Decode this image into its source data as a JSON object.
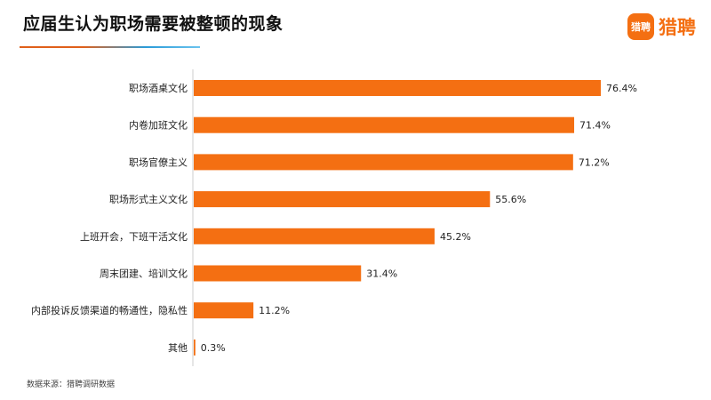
{
  "header": {
    "title": "应届生认为职场需要被整顿的现象",
    "logo_badge": "猎聘",
    "logo_text": "猎聘"
  },
  "source_note": "数据来源：猎聘调研数据",
  "colors": {
    "bar": "#f46f12",
    "axis": "#cccccc",
    "brand": "#f46f12"
  },
  "chart_data": {
    "type": "bar",
    "orientation": "horizontal",
    "categories": [
      "职场酒桌文化",
      "内卷加班文化",
      "职场官僚主义",
      "职场形式主义文化",
      "上班开会，下班干活文化",
      "周末团建、培训文化",
      "内部投诉反馈渠道的畅通性，隐私性",
      "其他"
    ],
    "values": [
      76.4,
      71.4,
      71.2,
      55.6,
      45.2,
      31.4,
      11.2,
      0.3
    ],
    "value_labels": [
      "76.4%",
      "71.4%",
      "71.2%",
      "55.6%",
      "45.2%",
      "31.4%",
      "11.2%",
      "0.3%"
    ],
    "unit": "%",
    "xlim": [
      0,
      100
    ],
    "grid": false,
    "legend": "none"
  }
}
